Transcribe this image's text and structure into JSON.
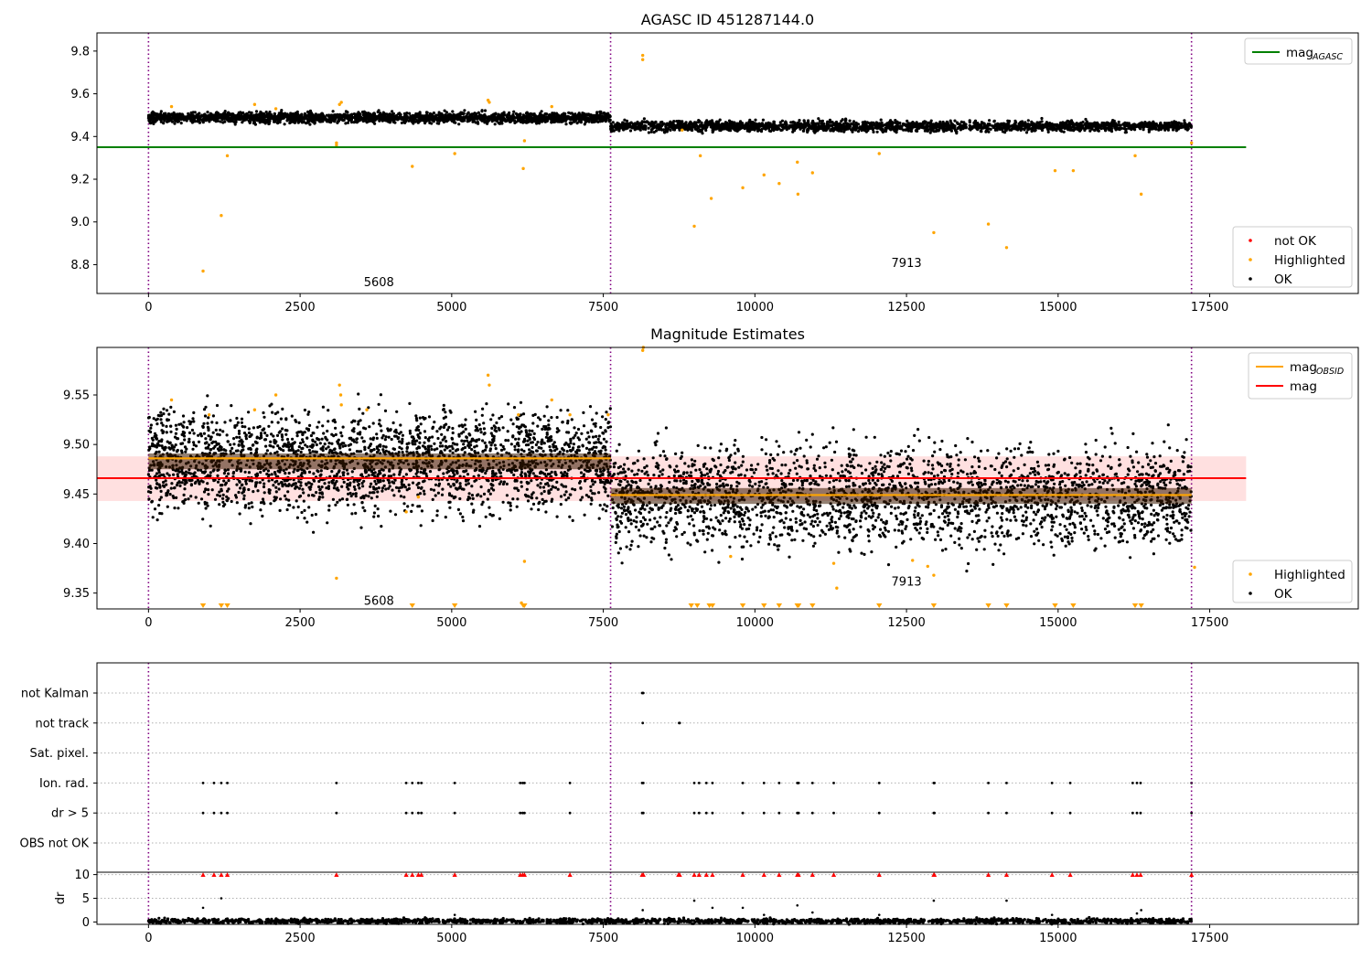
{
  "figure": {
    "background": "#ffffff"
  },
  "chart_data": [
    {
      "type": "scatter",
      "id": "agasc",
      "title": "AGASC ID 451287144.0",
      "xlim": [
        -850,
        19950
      ],
      "ylim": [
        8.665,
        9.885
      ],
      "x_ticks": [
        0,
        2500,
        5000,
        7500,
        10000,
        12500,
        15000,
        17500
      ],
      "x_tick_labels": [
        "0",
        "2500",
        "5000",
        "7500",
        "10000",
        "12500",
        "15000",
        "17500"
      ],
      "y_ticks": [
        8.8,
        9.0,
        9.2,
        9.4,
        9.6,
        9.8
      ],
      "y_tick_labels": [
        "8.8",
        "9.0",
        "9.2",
        "9.4",
        "9.6",
        "9.8"
      ],
      "obs_boundaries": [
        0,
        7620,
        17200
      ],
      "obs_labels": [
        {
          "text": "5608",
          "x": 3800,
          "y": 8.72
        },
        {
          "text": "7913",
          "x": 12500,
          "y": 8.81
        }
      ],
      "hlines": [
        {
          "name": "mag_AGASC",
          "y": 9.35,
          "x_range": [
            -850,
            18100
          ],
          "color": "#008000"
        }
      ],
      "legend_top": [
        {
          "label": "mag",
          "subscript": "AGASC",
          "color": "#008000",
          "marker": "line"
        }
      ],
      "legend_bottom": [
        {
          "label": "not OK",
          "color": "#ff0000",
          "marker": "dot"
        },
        {
          "label": "Highlighted",
          "color": "#ffa500",
          "marker": "dot"
        },
        {
          "label": "OK",
          "color": "#000000",
          "marker": "dot"
        }
      ],
      "series": [
        {
          "name": "OK",
          "color": "#000000",
          "bands": [
            {
              "x": [
                0,
                7620
              ],
              "y_center": 9.488,
              "y_spread": 0.012
            },
            {
              "x": [
                7620,
                17200
              ],
              "y_center": 9.448,
              "y_spread": 0.012
            }
          ]
        },
        {
          "name": "Highlighted",
          "color": "#ffa500",
          "x": [
            900,
            1200,
            1300,
            3100,
            4350,
            5050,
            6180,
            6200,
            8150,
            8150,
            9000,
            9100,
            9280,
            9800,
            10150,
            10400,
            10700,
            10710,
            10950,
            12050,
            12950,
            13850,
            14150,
            14950,
            15250,
            16270,
            16370,
            17200,
            380,
            1750,
            2100,
            3150,
            3180,
            5600,
            5620,
            6650,
            3100,
            8800
          ],
          "y": [
            8.77,
            9.03,
            9.31,
            9.37,
            9.26,
            9.32,
            9.25,
            9.38,
            9.78,
            9.76,
            8.98,
            9.31,
            9.11,
            9.16,
            9.22,
            9.18,
            9.28,
            9.13,
            9.23,
            9.32,
            8.95,
            8.99,
            8.88,
            9.24,
            9.24,
            9.31,
            9.13,
            9.37,
            9.54,
            9.55,
            9.53,
            9.55,
            9.56,
            9.57,
            9.56,
            9.54,
            9.36,
            9.43
          ]
        }
      ]
    },
    {
      "type": "scatter",
      "id": "mag_estimates",
      "title": "Magnitude Estimates",
      "xlim": [
        -850,
        19950
      ],
      "ylim": [
        9.334,
        9.598
      ],
      "x_ticks": [
        0,
        2500,
        5000,
        7500,
        10000,
        12500,
        15000,
        17500
      ],
      "x_tick_labels": [
        "0",
        "2500",
        "5000",
        "7500",
        "10000",
        "12500",
        "15000",
        "17500"
      ],
      "y_ticks": [
        9.35,
        9.4,
        9.45,
        9.5,
        9.55
      ],
      "y_tick_labels": [
        "9.35",
        "9.40",
        "9.45",
        "9.50",
        "9.55"
      ],
      "obs_boundaries": [
        0,
        7620,
        17200
      ],
      "obs_labels": [
        {
          "text": "5608",
          "x": 3800,
          "y": 9.343
        },
        {
          "text": "7913",
          "x": 12500,
          "y": 9.362
        }
      ],
      "hlines": [
        {
          "name": "mag",
          "y": 9.466,
          "x_range": [
            -850,
            18100
          ],
          "color": "#ff0000"
        }
      ],
      "obs_mag_segments": [
        {
          "x": [
            0,
            7620
          ],
          "y": 9.486,
          "color": "#ffa500"
        },
        {
          "x": [
            7620,
            17200
          ],
          "y": 9.449,
          "color": "#ffa500"
        }
      ],
      "mag_band": {
        "y_range": [
          9.443,
          9.488
        ],
        "x_range": [
          -850,
          18100
        ],
        "color": "#ffcccc"
      },
      "legend_top": [
        {
          "label": "mag",
          "subscript": "OBSID",
          "color": "#ffa500",
          "marker": "line"
        },
        {
          "label": "mag",
          "subscript": "",
          "color": "#ff0000",
          "marker": "line"
        }
      ],
      "legend_bottom": [
        {
          "label": "Highlighted",
          "color": "#ffa500",
          "marker": "dot"
        },
        {
          "label": "OK",
          "color": "#000000",
          "marker": "dot"
        }
      ],
      "series": [
        {
          "name": "OK",
          "color": "#000000",
          "bands": [
            {
              "x": [
                0,
                7620
              ],
              "y_center": 9.483,
              "y_spread": 0.025
            },
            {
              "x": [
                7620,
                17200
              ],
              "y_center": 9.448,
              "y_spread": 0.025
            }
          ]
        },
        {
          "name": "Highlighted",
          "color": "#ffa500",
          "x": [
            380,
            1000,
            1750,
            2100,
            3150,
            3170,
            3180,
            3600,
            5600,
            5620,
            6100,
            6650,
            6950,
            7580,
            8150,
            8160,
            3100,
            4250,
            4450,
            6200,
            6150,
            9600,
            11300,
            11350,
            12600,
            12850,
            12950,
            17250
          ],
          "y": [
            9.545,
            9.53,
            9.535,
            9.55,
            9.56,
            9.55,
            9.54,
            9.535,
            9.57,
            9.56,
            9.53,
            9.545,
            9.53,
            9.53,
            9.595,
            9.598,
            9.365,
            9.432,
            9.447,
            9.382,
            9.34,
            9.387,
            9.38,
            9.355,
            9.383,
            9.377,
            9.368,
            9.376
          ]
        },
        {
          "name": "below_range",
          "color": "#ffa500",
          "marker": "triangle-down",
          "x": [
            900,
            1200,
            1300,
            4350,
            5050,
            6180,
            6200,
            8950,
            9050,
            9250,
            9300,
            9800,
            10150,
            10400,
            10700,
            10720,
            10950,
            12050,
            12950,
            13850,
            14150,
            14950,
            15250,
            16270,
            16370
          ]
        }
      ]
    },
    {
      "type": "scatter",
      "id": "flags",
      "title": "",
      "xlim": [
        -850,
        19950
      ],
      "categories": [
        "not Kalman",
        "not track",
        "Sat. pixel.",
        "Ion. rad.",
        "dr > 5",
        "OBS not OK"
      ],
      "obs_boundaries": [
        0,
        7620,
        17200
      ],
      "flag_points": {
        "not Kalman": [
          8140,
          8150,
          8160
        ],
        "not track": [
          8150,
          8750,
          8760
        ],
        "Sat. pixel.": [],
        "Ion. rad.": [
          900,
          1080,
          1200,
          1300,
          3100,
          4250,
          4350,
          4450,
          4500,
          5050,
          6130,
          6170,
          6200,
          6950,
          8140,
          8160,
          9000,
          9080,
          9200,
          9300,
          9800,
          10150,
          10400,
          10700,
          10720,
          10950,
          11300,
          12050,
          12950,
          12960,
          13850,
          14150,
          14900,
          15200,
          16230,
          16300,
          16360,
          17200
        ],
        "dr > 5": [
          900,
          1080,
          1200,
          1300,
          3100,
          4250,
          4350,
          4450,
          4500,
          5050,
          6130,
          6170,
          6200,
          6950,
          8140,
          8160,
          9000,
          9080,
          9200,
          9300,
          9800,
          10150,
          10400,
          10700,
          10720,
          10950,
          11300,
          12050,
          12950,
          12960,
          13850,
          14150,
          14900,
          15200,
          16230,
          16300,
          16360,
          17200
        ],
        "OBS not OK": []
      },
      "point_color": "#000000"
    },
    {
      "type": "scatter",
      "id": "dr",
      "ylabel": "dr",
      "xlim": [
        -850,
        19950
      ],
      "ylim": [
        -0.5,
        10.5
      ],
      "y_ticks": [
        0,
        5,
        10
      ],
      "y_tick_labels": [
        "0",
        "5",
        "10"
      ],
      "x_ticks": [
        0,
        2500,
        5000,
        7500,
        10000,
        12500,
        15000,
        17500
      ],
      "x_tick_labels": [
        "0",
        "2500",
        "5000",
        "7500",
        "10000",
        "12500",
        "15000",
        "17500"
      ],
      "obs_boundaries": [
        0,
        7620,
        17200
      ],
      "series": [
        {
          "name": "OK",
          "color": "#000000",
          "band": {
            "x": [
              0,
              17200
            ],
            "y_center": 0.2,
            "y_spread": 0.25
          }
        },
        {
          "name": "clipped",
          "color": "#ff0000",
          "marker": "triangle-up",
          "y": 10,
          "x": [
            900,
            1080,
            1200,
            1300,
            3100,
            4250,
            4350,
            4450,
            4500,
            5050,
            6130,
            6170,
            6200,
            6950,
            8140,
            8160,
            8740,
            8760,
            9000,
            9080,
            9200,
            9300,
            9800,
            10150,
            10400,
            10700,
            10720,
            10950,
            11300,
            12050,
            12950,
            12960,
            13850,
            14150,
            14900,
            15200,
            16230,
            16300,
            16360,
            17200
          ]
        },
        {
          "name": "outliers",
          "color": "#000000",
          "x": [
            900,
            1200,
            5050,
            8150,
            9000,
            9300,
            9800,
            10150,
            10700,
            10950,
            12050,
            12950,
            14150,
            14900,
            16300,
            16370
          ],
          "y": [
            3.0,
            5.0,
            1.5,
            2.5,
            4.5,
            3.0,
            3.0,
            1.5,
            3.5,
            2.0,
            1.5,
            4.5,
            4.5,
            1.5,
            1.8,
            2.5
          ]
        }
      ]
    }
  ]
}
